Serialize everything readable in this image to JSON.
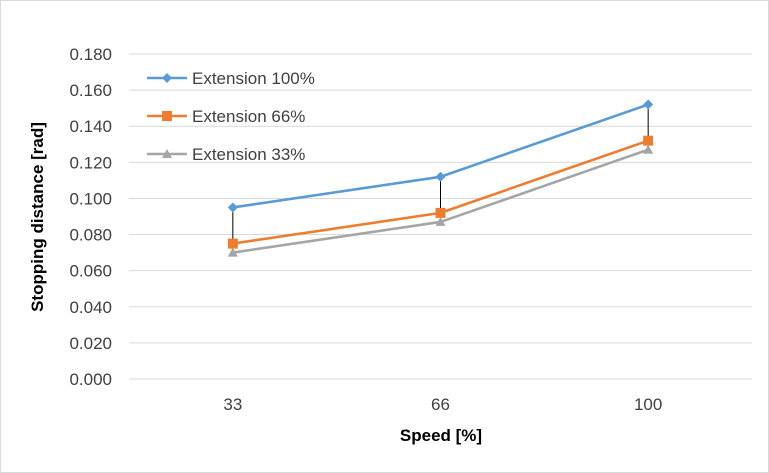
{
  "chart_data": {
    "type": "line",
    "xlabel": "Speed [%]",
    "ylabel": "Stopping distance [rad]",
    "categories": [
      "33",
      "66",
      "100"
    ],
    "ylim": [
      0,
      0.18
    ],
    "yticks": [
      "0.000",
      "0.020",
      "0.040",
      "0.060",
      "0.080",
      "0.100",
      "0.120",
      "0.140",
      "0.160",
      "0.180"
    ],
    "grid": true,
    "legend_position": "top-left",
    "series": [
      {
        "name": "Extension 100%",
        "values": [
          0.095,
          0.112,
          0.152
        ],
        "color": "#5b9bd5",
        "marker": "diamond"
      },
      {
        "name": "Extension 66%",
        "values": [
          0.075,
          0.092,
          0.132
        ],
        "color": "#ed7d31",
        "marker": "square"
      },
      {
        "name": "Extension 33%",
        "values": [
          0.07,
          0.087,
          0.127
        ],
        "color": "#a5a5a5",
        "marker": "triangle"
      }
    ]
  }
}
